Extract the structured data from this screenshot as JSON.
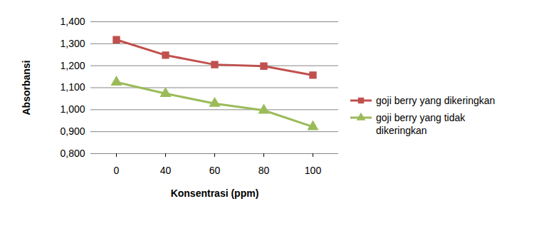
{
  "chart_data": {
    "type": "line",
    "x_label": "Konsentrasi (ppm)",
    "y_label": "Absorbansi",
    "categories": [
      "0",
      "40",
      "60",
      "80",
      "100"
    ],
    "series": [
      {
        "name": "goji berry yang dikeringkan",
        "color": "#c0504d",
        "marker": "square",
        "values": [
          1.318,
          1.248,
          1.205,
          1.198,
          1.157
        ]
      },
      {
        "name": "goji berry yang tidak dikeringkan",
        "color": "#9bbb59",
        "marker": "triangle",
        "values": [
          1.125,
          1.073,
          1.028,
          0.997,
          0.922
        ]
      }
    ],
    "ylim": [
      0.8,
      1.4
    ],
    "yticks": [
      {
        "value": 0.8,
        "label": "0,800"
      },
      {
        "value": 0.9,
        "label": "0,900"
      },
      {
        "value": 1.0,
        "label": "1,000"
      },
      {
        "value": 1.1,
        "label": "1,100"
      },
      {
        "value": 1.2,
        "label": "1,200"
      },
      {
        "value": 1.3,
        "label": "1,300"
      },
      {
        "value": 1.4,
        "label": "1,400"
      }
    ],
    "grid": true,
    "legend": "right"
  }
}
